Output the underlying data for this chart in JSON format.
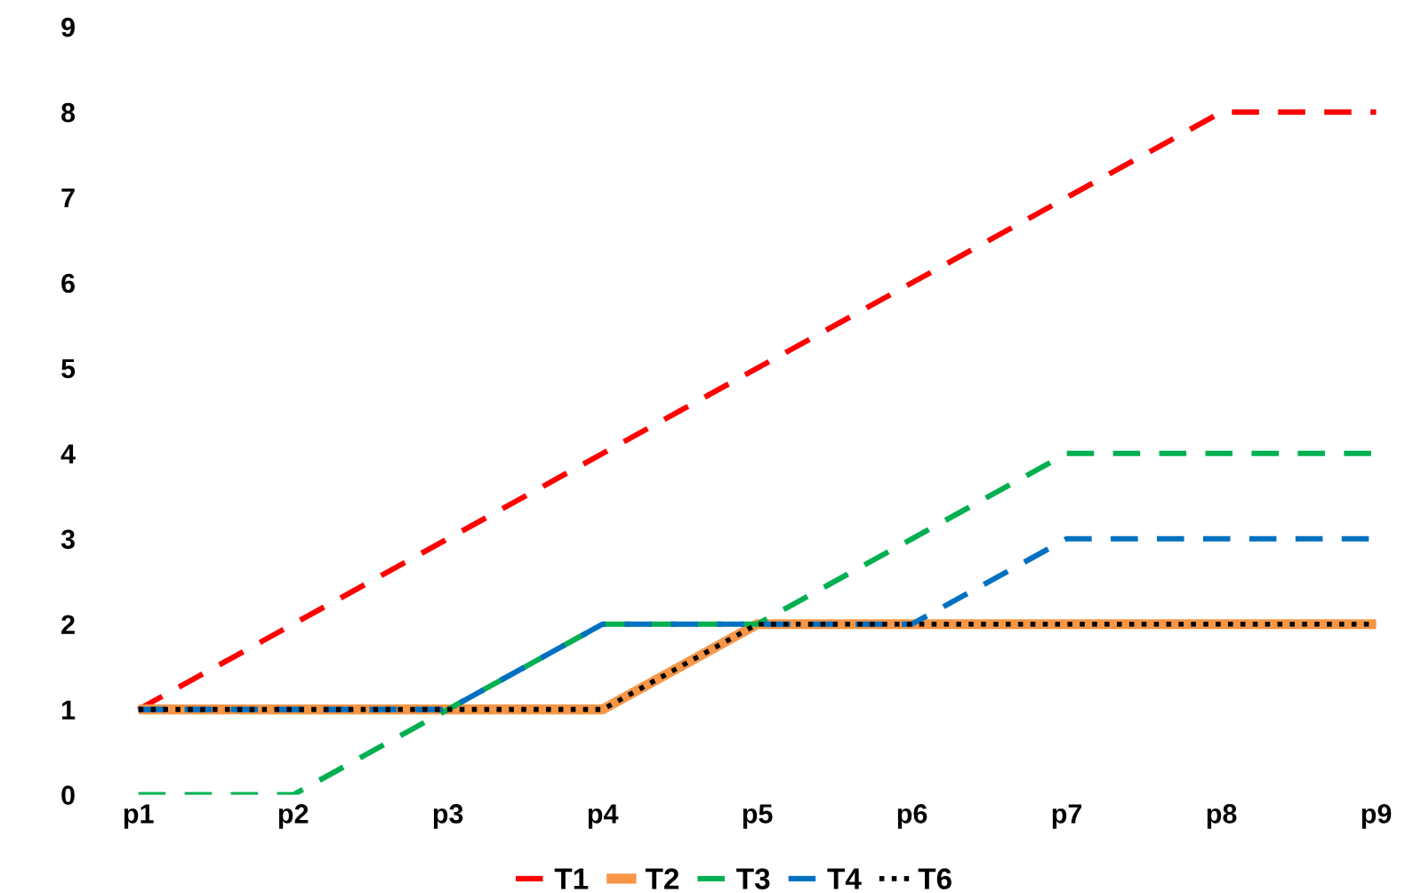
{
  "chart_data": {
    "type": "line",
    "categories": [
      "p1",
      "p2",
      "p3",
      "p4",
      "p5",
      "p6",
      "p7",
      "p8",
      "p9"
    ],
    "series": [
      {
        "name": "T1",
        "color": "#ff0000",
        "line_style": "dashed",
        "values": [
          1,
          2,
          3,
          4,
          5,
          6,
          7,
          8,
          8
        ]
      },
      {
        "name": "T2",
        "color": "#f79646",
        "line_style": "solid",
        "values": [
          1,
          1,
          1,
          1,
          2,
          2,
          2,
          2,
          2
        ]
      },
      {
        "name": "T3",
        "color": "#00b050",
        "line_style": "dashed",
        "values": [
          0,
          0,
          1,
          2,
          2,
          3,
          4,
          4,
          4
        ]
      },
      {
        "name": "T4",
        "color": "#0070c0",
        "line_style": "dashed",
        "values": [
          1,
          1,
          1,
          2,
          2,
          2,
          3,
          3,
          3
        ]
      },
      {
        "name": "T6",
        "color": "#000000",
        "line_style": "dotted",
        "values": [
          1,
          1,
          1,
          1,
          2,
          2,
          2,
          2,
          2
        ]
      }
    ],
    "ylim": [
      0,
      9
    ],
    "yticks": [
      0,
      1,
      2,
      3,
      4,
      5,
      6,
      7,
      8,
      9
    ],
    "grid": false,
    "legend": "bottom",
    "marker": "none"
  }
}
